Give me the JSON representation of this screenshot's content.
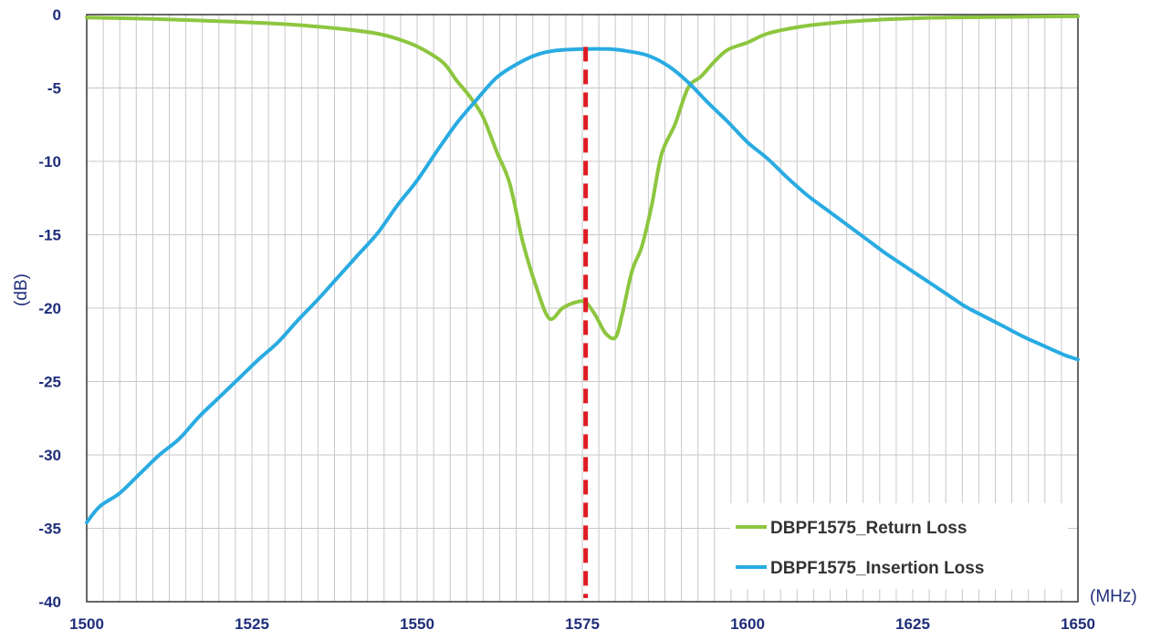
{
  "chart_data": {
    "type": "line",
    "title": "",
    "xlabel": "(MHz)",
    "ylabel": "(dB)",
    "xlim": [
      1500,
      1650
    ],
    "ylim": [
      -40,
      0
    ],
    "xticks": [
      1500,
      1525,
      1550,
      1575,
      1600,
      1625,
      1650
    ],
    "yticks": [
      0,
      -5,
      -10,
      -15,
      -20,
      -25,
      -30,
      -35,
      -40
    ],
    "minor_x_step": 2.5,
    "grid": true,
    "legend_position": "bottom-right",
    "marker_line": {
      "x": 1575.5,
      "style": "dashed",
      "color": "#e01b24"
    },
    "series": [
      {
        "name": "DBPF1575_Return Loss",
        "color": "#8dc63f",
        "points": [
          [
            1500,
            -0.2
          ],
          [
            1510,
            -0.3
          ],
          [
            1520,
            -0.45
          ],
          [
            1530,
            -0.65
          ],
          [
            1538,
            -0.95
          ],
          [
            1544,
            -1.3
          ],
          [
            1548,
            -1.8
          ],
          [
            1551,
            -2.4
          ],
          [
            1554,
            -3.3
          ],
          [
            1556,
            -4.5
          ],
          [
            1558,
            -5.6
          ],
          [
            1560,
            -7.0
          ],
          [
            1562,
            -9.3
          ],
          [
            1564,
            -11.5
          ],
          [
            1566,
            -15.5
          ],
          [
            1568,
            -18.5
          ],
          [
            1570,
            -20.7
          ],
          [
            1572,
            -20.0
          ],
          [
            1574,
            -19.6
          ],
          [
            1575.5,
            -19.6
          ],
          [
            1577,
            -20.5
          ],
          [
            1578.5,
            -21.7
          ],
          [
            1580,
            -22.0
          ],
          [
            1581,
            -20.5
          ],
          [
            1582.5,
            -17.5
          ],
          [
            1584,
            -15.8
          ],
          [
            1585.5,
            -13.0
          ],
          [
            1587,
            -9.5
          ],
          [
            1589,
            -7.5
          ],
          [
            1591,
            -5.0
          ],
          [
            1593,
            -4.2
          ],
          [
            1595,
            -3.2
          ],
          [
            1597,
            -2.4
          ],
          [
            1600,
            -1.9
          ],
          [
            1603,
            -1.3
          ],
          [
            1607,
            -0.9
          ],
          [
            1612,
            -0.6
          ],
          [
            1620,
            -0.35
          ],
          [
            1630,
            -0.2
          ],
          [
            1650,
            -0.12
          ]
        ]
      },
      {
        "name": "DBPF1575_Insertion Loss",
        "color": "#29abe2",
        "points": [
          [
            1500,
            -34.6
          ],
          [
            1502,
            -33.5
          ],
          [
            1505,
            -32.6
          ],
          [
            1508,
            -31.3
          ],
          [
            1511,
            -30.0
          ],
          [
            1514,
            -28.9
          ],
          [
            1517,
            -27.4
          ],
          [
            1520,
            -26.1
          ],
          [
            1523,
            -24.8
          ],
          [
            1526,
            -23.5
          ],
          [
            1529,
            -22.3
          ],
          [
            1532,
            -20.8
          ],
          [
            1535,
            -19.4
          ],
          [
            1538,
            -17.9
          ],
          [
            1541,
            -16.4
          ],
          [
            1544,
            -14.9
          ],
          [
            1547,
            -13.0
          ],
          [
            1550,
            -11.3
          ],
          [
            1553,
            -9.3
          ],
          [
            1556,
            -7.4
          ],
          [
            1559,
            -5.8
          ],
          [
            1562,
            -4.3
          ],
          [
            1565,
            -3.4
          ],
          [
            1568,
            -2.75
          ],
          [
            1571,
            -2.45
          ],
          [
            1575,
            -2.35
          ],
          [
            1579,
            -2.35
          ],
          [
            1582,
            -2.5
          ],
          [
            1585,
            -2.8
          ],
          [
            1588,
            -3.5
          ],
          [
            1591,
            -4.6
          ],
          [
            1594,
            -6.0
          ],
          [
            1597,
            -7.3
          ],
          [
            1600,
            -8.7
          ],
          [
            1603,
            -9.8
          ],
          [
            1606,
            -11.1
          ],
          [
            1609,
            -12.3
          ],
          [
            1612,
            -13.3
          ],
          [
            1615,
            -14.3
          ],
          [
            1618,
            -15.3
          ],
          [
            1621,
            -16.3
          ],
          [
            1624,
            -17.2
          ],
          [
            1627,
            -18.1
          ],
          [
            1630,
            -19.0
          ],
          [
            1633,
            -19.9
          ],
          [
            1636,
            -20.6
          ],
          [
            1639,
            -21.3
          ],
          [
            1642,
            -22.0
          ],
          [
            1645,
            -22.6
          ],
          [
            1648,
            -23.2
          ],
          [
            1650,
            -23.5
          ]
        ]
      }
    ]
  }
}
